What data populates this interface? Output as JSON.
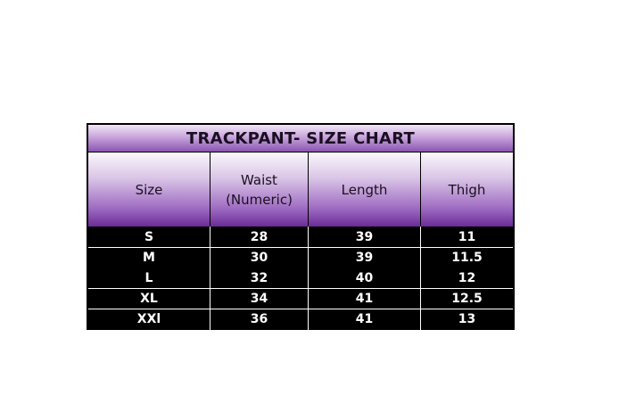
{
  "title": "TRACKPANT- SIZE CHART",
  "headers": [
    "Size",
    "Waist\n(Numeric)",
    "Length",
    "Thigh"
  ],
  "rows": [
    [
      "S",
      "28",
      "39",
      "11"
    ],
    [
      "M",
      "30",
      "39",
      "11.5"
    ],
    [
      "L",
      "32",
      "40",
      "12"
    ],
    [
      "XL",
      "34",
      "41",
      "12.5"
    ],
    [
      "XXl",
      "36",
      "41",
      "13"
    ]
  ],
  "colors": {
    "header_purple": "#6a2c98",
    "body_bg": "#000000",
    "text_light": "#ffffff"
  }
}
